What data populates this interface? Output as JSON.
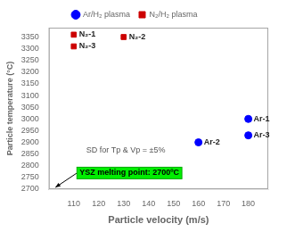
{
  "chart_data": {
    "type": "scatter",
    "xlabel": "Particle velocity (m/s)",
    "ylabel": "Particle temperature (°C)",
    "series": [
      {
        "name": "Ar/H₂ plasma",
        "color": "#0000ff",
        "marker": "circle",
        "x": [
          160,
          180,
          180
        ],
        "values": [
          2900,
          2930,
          3000
        ],
        "labels": [
          "Ar-2",
          "Ar-3",
          "Ar-1"
        ]
      },
      {
        "name": "N₂/H₂ plasma",
        "color": "#cc0000",
        "marker": "square",
        "x": [
          110,
          110,
          130
        ],
        "values": [
          3360,
          3310,
          3350
        ],
        "labels": [
          "N₂-1",
          "N₂-3",
          "N₂-2"
        ]
      }
    ],
    "annotations": [
      {
        "text": "SD for Tp & Vp = ±5%"
      },
      {
        "text": "YSZ melting point: 2700ºC",
        "color": "#00ee00"
      }
    ],
    "xlim": [
      100,
      188
    ],
    "ylim": [
      2700,
      3390
    ],
    "xticks": [
      110,
      120,
      130,
      140,
      150,
      160,
      170,
      180
    ],
    "yticks": [
      2700,
      2750,
      2800,
      2850,
      2900,
      2950,
      3000,
      3050,
      3100,
      3150,
      3200,
      3250,
      3300,
      3350
    ],
    "grid": false,
    "legend": "top"
  }
}
